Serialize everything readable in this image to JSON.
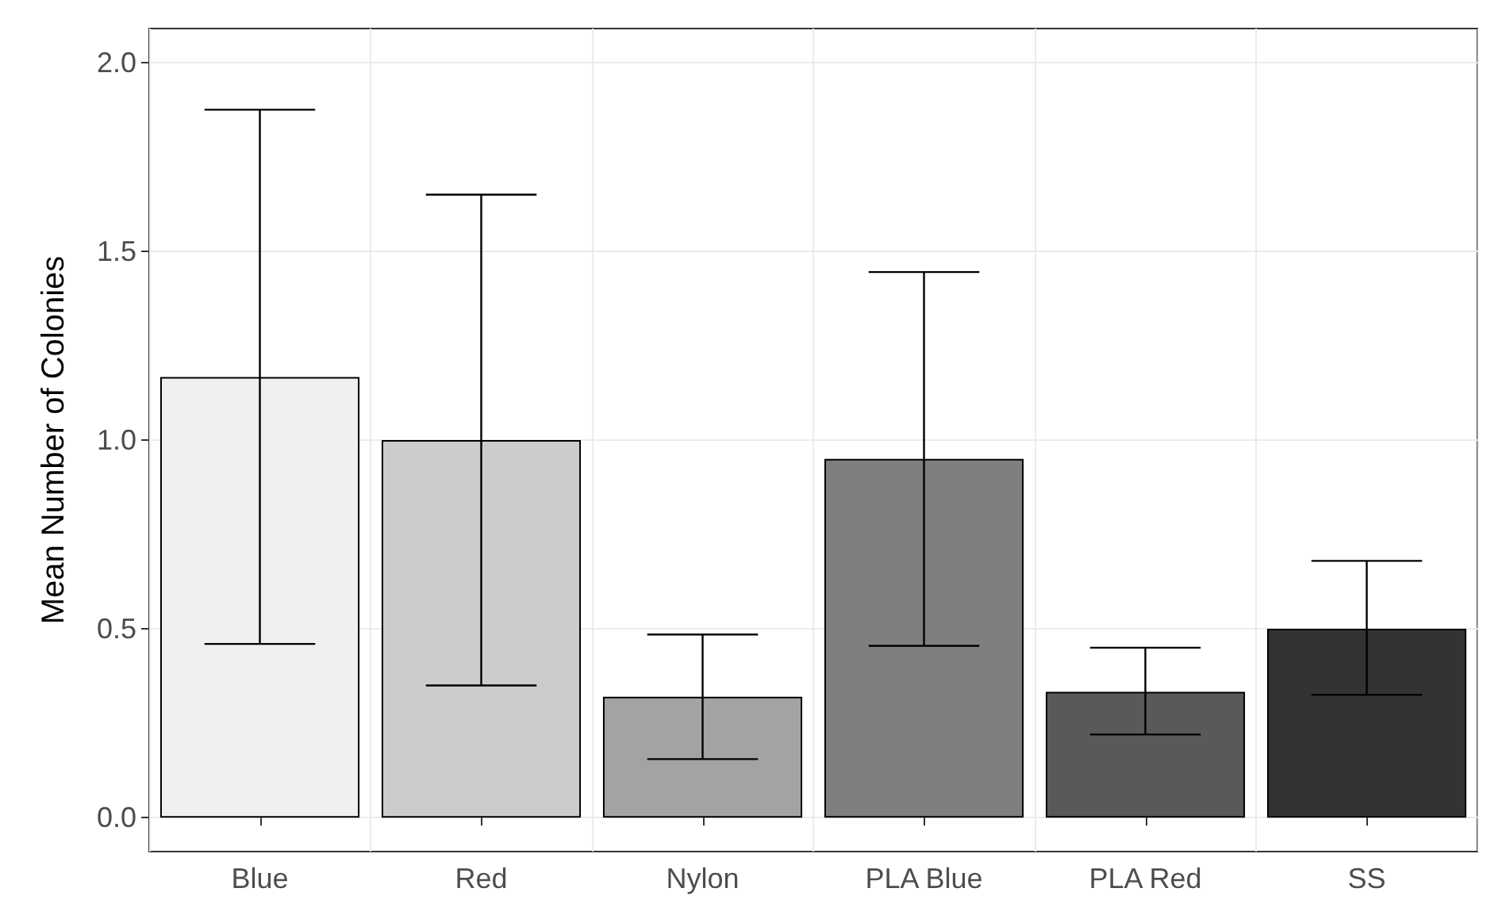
{
  "chart_data": {
    "type": "bar",
    "ylabel": "Mean Number of Colonies",
    "categories": [
      "Blue",
      "Red",
      "Nylon",
      "PLA Blue",
      "PLA Red",
      "SS"
    ],
    "values": [
      1.167,
      1.0,
      0.32,
      0.95,
      0.333,
      0.5
    ],
    "colors": [
      "#f0f0f0",
      "#cccccc",
      "#a3a3a3",
      "#7f7f7f",
      "#595959",
      "#333333"
    ],
    "errors": [
      [
        0.46,
        1.875
      ],
      [
        0.35,
        1.65
      ],
      [
        0.155,
        0.485
      ],
      [
        0.455,
        1.445
      ],
      [
        0.22,
        0.45
      ],
      [
        0.325,
        0.68
      ]
    ],
    "ylim": [
      -0.09,
      2.09
    ],
    "yticks": [
      {
        "value": 0,
        "label": "0.0"
      },
      {
        "value": 0.5,
        "label": "0.5"
      },
      {
        "value": 1,
        "label": "1.0"
      },
      {
        "value": 1.5,
        "label": "1.5"
      },
      {
        "value": 2,
        "label": "2.0"
      }
    ],
    "grid": true
  }
}
